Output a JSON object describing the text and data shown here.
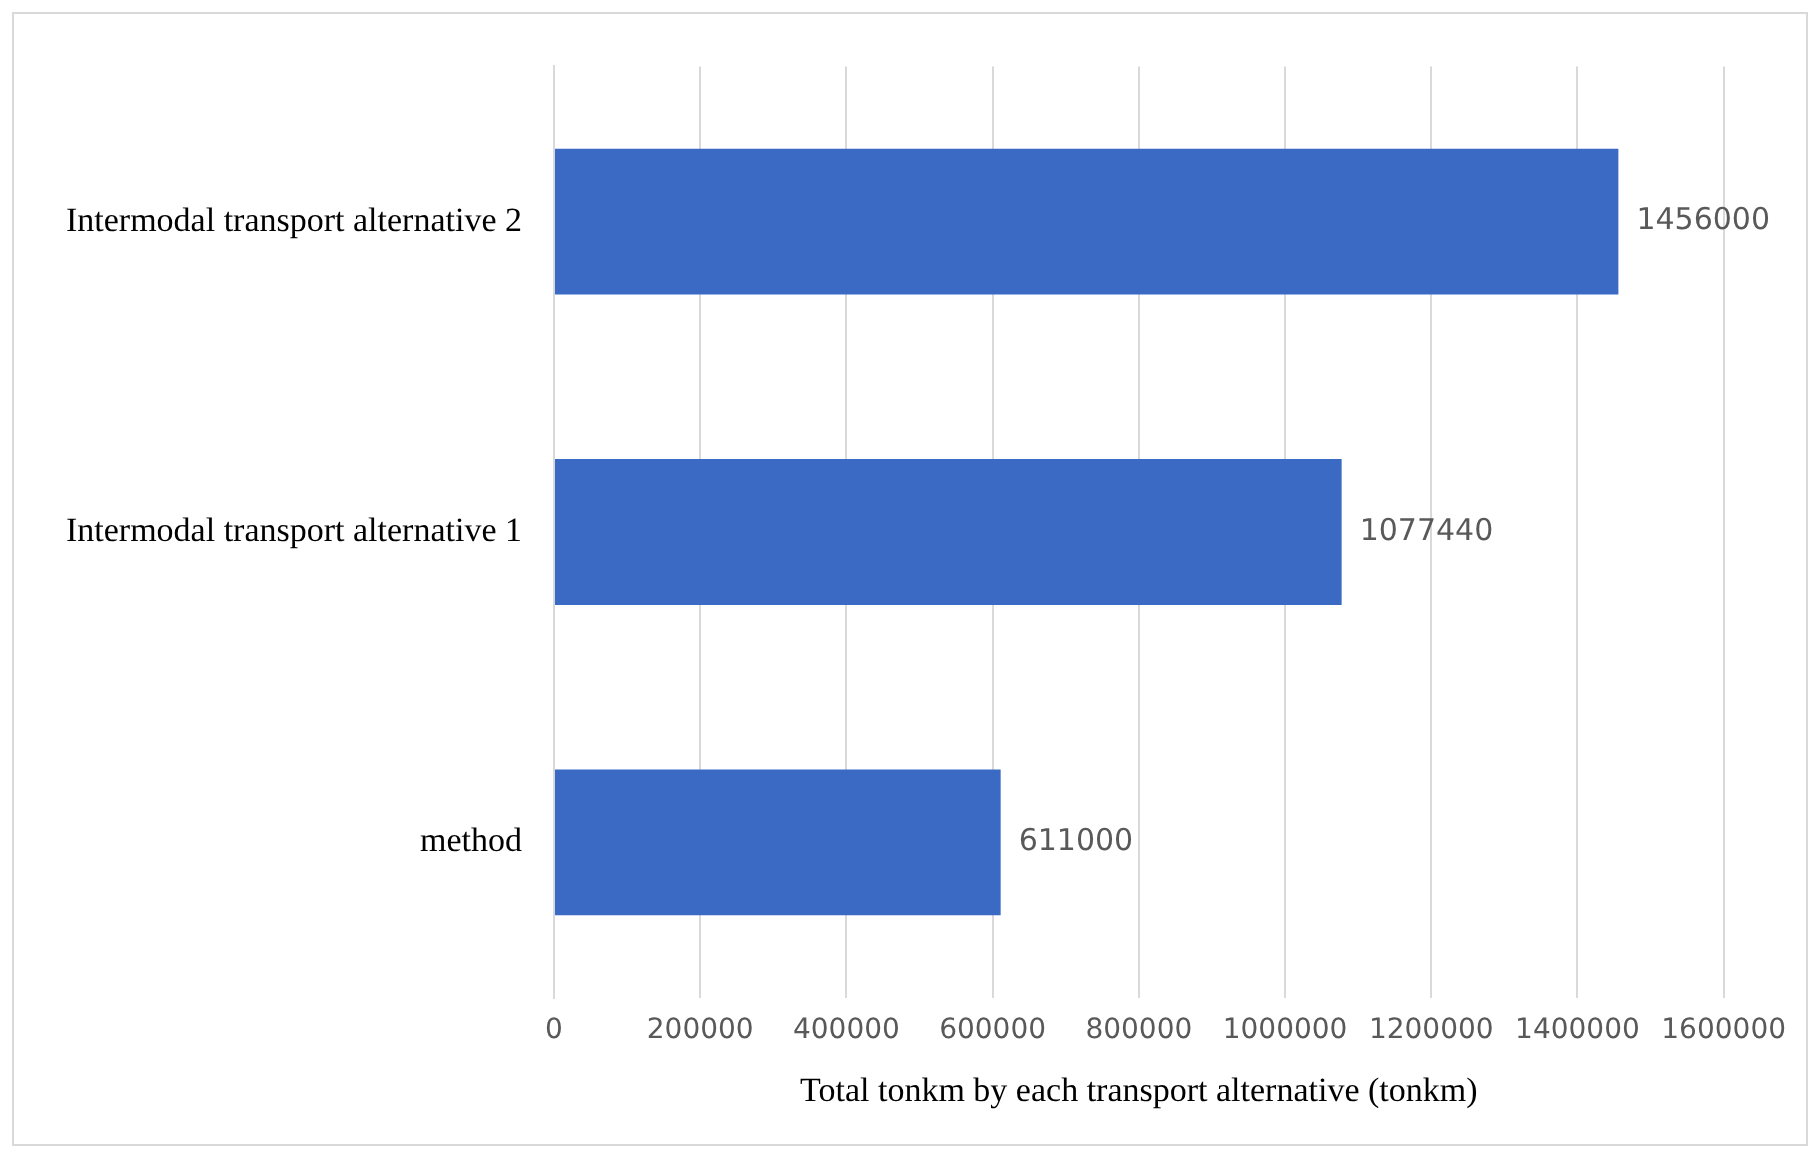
{
  "chart_data": {
    "type": "bar",
    "orientation": "horizontal",
    "xlabel": "Total tonkm by each transport alternative (tonkm)",
    "categories": [
      "Intermodal transport alternative 2",
      "Intermodal transport alternative 1",
      "method"
    ],
    "values": [
      1456000,
      1077440,
      611000
    ],
    "color": "#3b6ac4",
    "xlim": [
      0,
      1600000
    ],
    "xticks": [
      0,
      200000,
      400000,
      600000,
      800000,
      1000000,
      1200000,
      1400000,
      1600000
    ],
    "grid": "x",
    "data_labels": true,
    "legend": false
  }
}
